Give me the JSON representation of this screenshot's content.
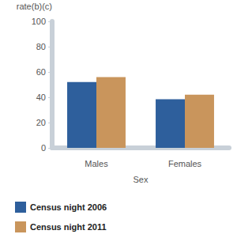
{
  "chart_data": {
    "type": "bar",
    "y_label": "rate(b)(c)",
    "x_label": "Sex",
    "categories": [
      "Males",
      "Females"
    ],
    "series": [
      {
        "name": "Census night 2006",
        "color": "#2e5f9c",
        "values": [
          52,
          38.5
        ]
      },
      {
        "name": "Census night 2011",
        "color": "#c9955c",
        "values": [
          56,
          42
        ]
      }
    ],
    "ylim": [
      0,
      100
    ],
    "yticks": [
      0,
      20,
      40,
      60,
      80,
      100
    ],
    "grid": false,
    "legend": "bottom-left"
  }
}
